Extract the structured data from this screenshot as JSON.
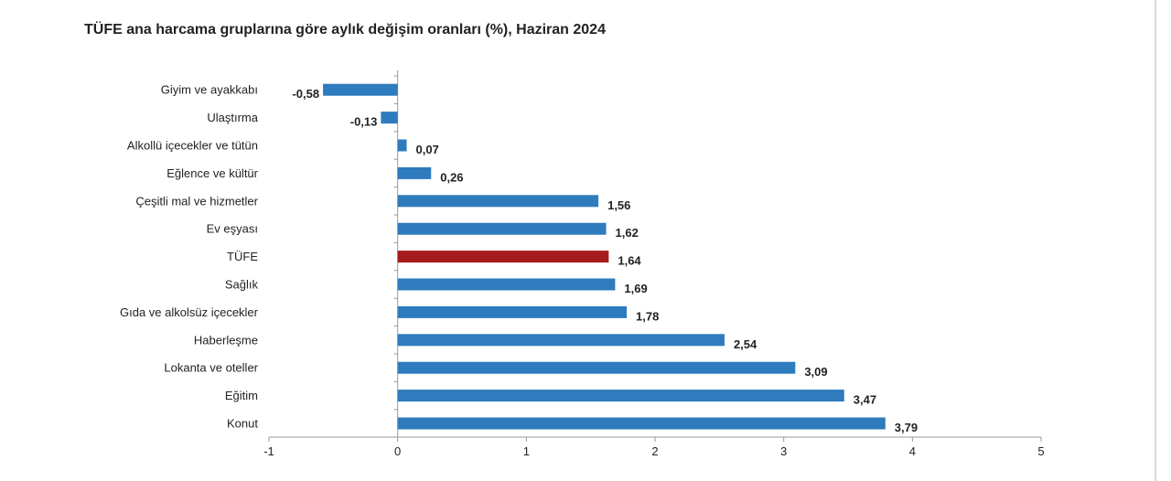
{
  "chart_data": {
    "type": "bar",
    "orientation": "horizontal",
    "title": "TÜFE ana harcama gruplarına göre aylık değişim oranları (%), Haziran 2024",
    "categories": [
      "Giyim ve ayakkabı",
      "Ulaştırma",
      "Alkollü içecekler ve tütün",
      "Eğlence ve kültür",
      "Çeşitli mal ve hizmetler",
      "Ev eşyası",
      "TÜFE",
      "Sağlık",
      "Gıda ve alkolsüz içecekler",
      "Haberleşme",
      "Lokanta ve oteller",
      "Eğitim",
      "Konut"
    ],
    "values": [
      -0.58,
      -0.13,
      0.07,
      0.26,
      1.56,
      1.62,
      1.64,
      1.69,
      1.78,
      2.54,
      3.09,
      3.47,
      3.79
    ],
    "value_labels": [
      "-0,58",
      "-0,13",
      "0,07",
      "0,26",
      "1,56",
      "1,62",
      "1,64",
      "1,69",
      "1,78",
      "2,54",
      "3,09",
      "3,47",
      "3,79"
    ],
    "xlim": [
      -1,
      5
    ],
    "xticks": [
      -1,
      0,
      1,
      2,
      3,
      4,
      5
    ],
    "xtick_labels": [
      "-1",
      "0",
      "1",
      "2",
      "3",
      "4",
      "5"
    ],
    "grid": false,
    "legend": "none",
    "colors": {
      "bar": "#2e7bbd",
      "highlight": "#a61c1c",
      "highlight_category": "TÜFE"
    }
  }
}
